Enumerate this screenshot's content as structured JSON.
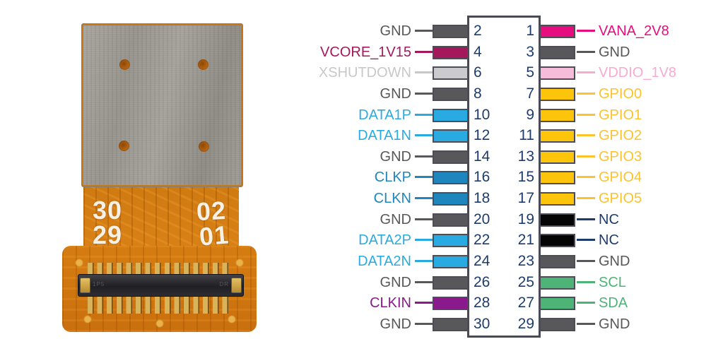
{
  "photo": {
    "silk": {
      "left_top": "30",
      "left_bottom": "29",
      "right_top": "02",
      "right_bottom": "01"
    },
    "connector_marking_left": "1P5",
    "connector_marking_right": "DR"
  },
  "pinout": {
    "number_color": "#1d3c6c",
    "outline_color": "#494955",
    "left_pins": [
      {
        "num": "2",
        "label": "GND",
        "type": "gnd"
      },
      {
        "num": "4",
        "label": "VCORE_1V15",
        "type": "vcore"
      },
      {
        "num": "6",
        "label": "XSHUTDOWN",
        "type": "xshutdown"
      },
      {
        "num": "8",
        "label": "GND",
        "type": "gnd"
      },
      {
        "num": "10",
        "label": "DATA1P",
        "type": "data"
      },
      {
        "num": "12",
        "label": "DATA1N",
        "type": "data"
      },
      {
        "num": "14",
        "label": "GND",
        "type": "gnd"
      },
      {
        "num": "16",
        "label": "CLKP",
        "type": "clk"
      },
      {
        "num": "18",
        "label": "CLKN",
        "type": "clk"
      },
      {
        "num": "20",
        "label": "GND",
        "type": "gnd"
      },
      {
        "num": "22",
        "label": "DATA2P",
        "type": "data"
      },
      {
        "num": "24",
        "label": "DATA2N",
        "type": "data"
      },
      {
        "num": "26",
        "label": "GND",
        "type": "gnd"
      },
      {
        "num": "28",
        "label": "CLKIN",
        "type": "clkin"
      },
      {
        "num": "30",
        "label": "GND",
        "type": "gnd"
      }
    ],
    "right_pins": [
      {
        "num": "1",
        "label": "VANA_2V8",
        "type": "vana"
      },
      {
        "num": "3",
        "label": "GND",
        "type": "gnd"
      },
      {
        "num": "5",
        "label": "VDDIO_1V8",
        "type": "vddio"
      },
      {
        "num": "7",
        "label": "GPIO0",
        "type": "gpio"
      },
      {
        "num": "9",
        "label": "GPIO1",
        "type": "gpio"
      },
      {
        "num": "11",
        "label": "GPIO2",
        "type": "gpio"
      },
      {
        "num": "13",
        "label": "GPIO3",
        "type": "gpio"
      },
      {
        "num": "15",
        "label": "GPIO4",
        "type": "gpio"
      },
      {
        "num": "17",
        "label": "GPIO5",
        "type": "gpio"
      },
      {
        "num": "19",
        "label": "NC",
        "type": "nc"
      },
      {
        "num": "21",
        "label": "NC",
        "type": "nc"
      },
      {
        "num": "23",
        "label": "GND",
        "type": "gnd"
      },
      {
        "num": "25",
        "label": "SCL",
        "type": "i2c"
      },
      {
        "num": "27",
        "label": "SDA",
        "type": "i2c"
      },
      {
        "num": "29",
        "label": "GND",
        "type": "gnd"
      }
    ],
    "colors": {
      "gnd": {
        "bar": "#58585a",
        "text": "#58585a",
        "line": "#58585a"
      },
      "vcore": {
        "bar": "#a3195b",
        "text": "#a3195b",
        "line": "#a3195b"
      },
      "xshutdown": {
        "bar": "#cbcbcd",
        "text": "#c8c8ca",
        "line": "#c8c8ca"
      },
      "data": {
        "bar": "#29abe2",
        "text": "#29abe2",
        "line": "#29abe2"
      },
      "clk": {
        "bar": "#1f86bd",
        "text": "#1f86bd",
        "line": "#1f86bd"
      },
      "clkin": {
        "bar": "#8a1a8c",
        "text": "#8a1a8c",
        "line": "#8a1a8c"
      },
      "vana": {
        "bar": "#e60d7e",
        "text": "#e60d7e",
        "line": "#e60d7e"
      },
      "vddio": {
        "bar": "#f6bcd9",
        "text": "#f7abd2",
        "line": "#f7abd2"
      },
      "gpio": {
        "bar": "#fcc40b",
        "text": "#fcc32c",
        "line": "#fcc32c"
      },
      "nc": {
        "bar": "#050505",
        "text": "#1d3c6c",
        "line": "#1d3c6c"
      },
      "i2c": {
        "bar": "#4eb377",
        "text": "#4eb377",
        "line": "#4eb377"
      }
    }
  }
}
